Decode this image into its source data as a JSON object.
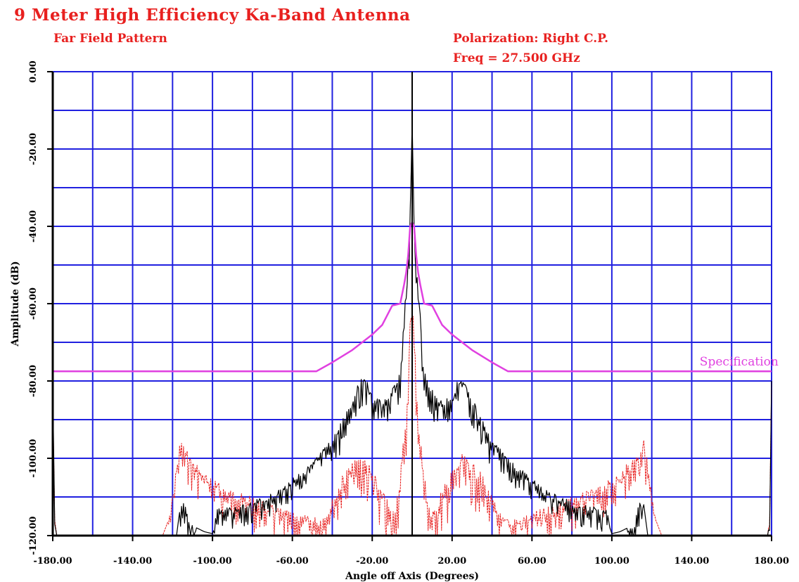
{
  "title": "9 Meter High Efficiency Ka-Band Antenna",
  "subtitle": "Far Field Pattern",
  "polarization": "Polarization: Right C.P.",
  "frequency": "Freq = 27.500 GHz",
  "colors": {
    "grid": "#2020e0",
    "spec": "#e040e0",
    "copol": "#000000",
    "xpol": "#e8201f",
    "text_red": "#e8201f"
  },
  "chart_data": {
    "type": "line",
    "title": "9 Meter High Efficiency Ka-Band Antenna",
    "subtitle": "Far Field Pattern",
    "xlabel": "Angle off Axis  (Degrees)",
    "ylabel": "Amplitude  (dB)",
    "xlim": [
      -180,
      180
    ],
    "ylim": [
      -120,
      0
    ],
    "x_ticks": [
      "-180.00",
      "-140.00",
      "-100.00",
      "-60.00",
      "-20.00",
      "20.00",
      "60.00",
      "100.00",
      "140.00",
      "180.00"
    ],
    "x_tick_values": [
      -180,
      -140,
      -100,
      -60,
      -20,
      20,
      60,
      100,
      140,
      180
    ],
    "y_ticks": [
      "0.00",
      "-20.00",
      "-40.00",
      "-60.00",
      "-80.00",
      "-100.00",
      "-120.00"
    ],
    "y_tick_values": [
      0,
      -20,
      -40,
      -60,
      -80,
      -100,
      -120
    ],
    "grid": true,
    "grid_x_step": 20,
    "grid_y_step": 10,
    "annotations": [
      {
        "text": "Specification",
        "x": 144,
        "y": -76
      }
    ],
    "series": [
      {
        "name": "Specification",
        "role": "spec",
        "x": [
          -180,
          -48,
          -40,
          -30,
          -20,
          -15,
          -10,
          -6,
          -4,
          -3,
          -2,
          -1,
          0,
          1,
          2,
          3,
          4,
          6,
          10,
          15,
          20,
          30,
          40,
          48,
          180
        ],
        "y": [
          -77.5,
          -77.5,
          -75.2,
          -72,
          -68,
          -65.5,
          -60.5,
          -60,
          -55,
          -52,
          -47.5,
          -40,
          -39,
          -40,
          -47.5,
          -52,
          -55,
          -60,
          -60.5,
          -65.5,
          -68,
          -72,
          -75.2,
          -77.5,
          -77.5
        ]
      },
      {
        "role": "copol",
        "x": [
          -180,
          -179,
          -178,
          -176,
          -120,
          -118,
          -116,
          -114,
          -111,
          -108,
          -104,
          -100,
          -99,
          -98,
          -95,
          -90,
          -85,
          -80,
          -75,
          -70,
          -65,
          -60,
          -55,
          -50,
          -45,
          -40,
          -35,
          -30,
          -26,
          -24,
          -22,
          -20,
          -17,
          -14,
          -11,
          -8,
          -6,
          -5,
          -4,
          -3,
          -2,
          -1.5,
          -1,
          -0.5,
          0,
          0.5,
          1,
          1.5,
          2,
          3,
          4,
          5,
          6,
          8,
          11,
          14,
          17,
          20,
          22,
          24,
          26,
          30,
          35,
          40,
          45,
          50,
          55,
          60,
          65,
          70,
          75,
          80,
          85,
          90,
          95,
          98,
          99,
          100,
          104,
          108,
          111,
          114,
          116,
          118,
          120,
          176,
          178,
          179,
          180
        ],
        "y": [
          -80,
          -117,
          -120,
          -120,
          -120,
          -120,
          -112,
          -111,
          -117,
          -118,
          -119,
          -119.5,
          -118,
          -112,
          -113,
          -112.5,
          -112,
          -111,
          -110,
          -109,
          -107.5,
          -105,
          -103,
          -101,
          -98,
          -95,
          -90,
          -84,
          -79.5,
          -78,
          -81,
          -84,
          -84.5,
          -85,
          -83,
          -80,
          -77.5,
          -72,
          -60,
          -58,
          -48,
          -45,
          -36,
          -23,
          -12,
          -23,
          -36,
          -45,
          -48,
          -58,
          -60,
          -72,
          -77.5,
          -80,
          -83,
          -85,
          -84.5,
          -84,
          -81,
          -78,
          -79.5,
          -84,
          -90,
          -95,
          -98,
          -101,
          -103,
          -105,
          -107.5,
          -109,
          -110,
          -111,
          -112,
          -112.5,
          -113,
          -112,
          -118,
          -119.5,
          -119,
          -118,
          -117,
          -111,
          -112,
          -120,
          -120,
          -120,
          -120,
          -117,
          -80
        ]
      },
      {
        "role": "xpol",
        "x": [
          -180,
          -179,
          -178,
          -176,
          -125,
          -122,
          -120,
          -118,
          -116,
          -114,
          -110,
          -105,
          -100,
          -95,
          -90,
          -85,
          -80,
          -75,
          -70,
          -65,
          -60,
          -55,
          -50,
          -45,
          -40,
          -35,
          -30,
          -25,
          -22,
          -19,
          -16,
          -13,
          -10,
          -8,
          -6,
          -4,
          -3,
          -2,
          -1,
          0,
          1,
          2,
          3,
          4,
          6,
          8,
          10,
          13,
          16,
          19,
          22,
          25,
          30,
          35,
          40,
          45,
          50,
          55,
          60,
          65,
          70,
          75,
          80,
          85,
          90,
          95,
          100,
          105,
          110,
          114,
          116,
          118,
          120,
          122,
          125,
          176,
          178,
          179,
          180
        ],
        "y": [
          -80,
          -116,
          -120,
          -120,
          -120,
          -116,
          -109,
          -101,
          -95,
          -97,
          -100,
          -103,
          -105,
          -107,
          -108,
          -109,
          -110,
          -111,
          -112,
          -113,
          -114,
          -114.5,
          -115,
          -115,
          -110,
          -104,
          -101,
          -99,
          -101,
          -104,
          -107,
          -110,
          -114,
          -110,
          -104,
          -93,
          -88,
          -82,
          -63,
          -58,
          -63,
          -82,
          -88,
          -93,
          -104,
          -110,
          -114,
          -110,
          -107,
          -104,
          -101,
          -99,
          -101,
          -104,
          -110,
          -115,
          -115,
          -114.5,
          -114,
          -113,
          -112,
          -111,
          -110,
          -109,
          -108,
          -107,
          -105,
          -103,
          -100,
          -97,
          -95,
          -101,
          -109,
          -116,
          -120,
          -120,
          -120,
          -116,
          -80
        ]
      }
    ]
  }
}
